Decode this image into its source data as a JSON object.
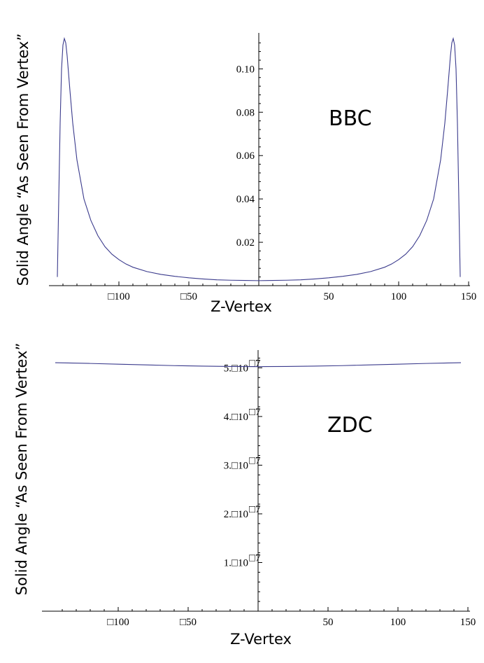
{
  "chart_data": [
    {
      "type": "line",
      "xlabel": "Z-Vertex",
      "ylabel": "Solid Angle “As Seen From Vertex”",
      "annotation": "BBC",
      "xlim": [
        -145,
        145
      ],
      "ylim": [
        0,
        0.114
      ],
      "x_ticks": [
        -100,
        -50,
        50,
        100,
        150
      ],
      "x_tick_labels": [
        "□100",
        "□50",
        "50",
        "100",
        "150"
      ],
      "y_ticks": [
        0.02,
        0.04,
        0.06,
        0.08,
        0.1
      ],
      "y_tick_labels": [
        "0.02",
        "0.04",
        "0.06",
        "0.08",
        "0.10"
      ],
      "color": "#3a3a8c",
      "series": [
        {
          "x": [
            -144,
            -143,
            -142,
            -141,
            -140,
            -139,
            -138,
            -137,
            -136,
            -135,
            -133,
            -130,
            -125,
            -120,
            -115,
            -110,
            -105,
            -100,
            -95,
            -90,
            -80,
            -70,
            -60,
            -50,
            -40,
            -30,
            -20,
            -10,
            0,
            10,
            20,
            30,
            40,
            50,
            60,
            70,
            80,
            90,
            95,
            100,
            105,
            110,
            115,
            120,
            125,
            130,
            133,
            135,
            136,
            137,
            138,
            139,
            140,
            141,
            142,
            143,
            144
          ],
          "y": [
            0.004,
            0.04,
            0.075,
            0.1,
            0.111,
            0.114,
            0.112,
            0.106,
            0.098,
            0.09,
            0.075,
            0.058,
            0.04,
            0.03,
            0.023,
            0.018,
            0.0145,
            0.012,
            0.01,
            0.0085,
            0.0065,
            0.0052,
            0.0043,
            0.0036,
            0.0031,
            0.0027,
            0.0025,
            0.0024,
            0.0023,
            0.0024,
            0.0025,
            0.0027,
            0.0031,
            0.0036,
            0.0043,
            0.0052,
            0.0065,
            0.0085,
            0.01,
            0.012,
            0.0145,
            0.018,
            0.023,
            0.03,
            0.04,
            0.058,
            0.075,
            0.09,
            0.098,
            0.106,
            0.112,
            0.114,
            0.111,
            0.1,
            0.075,
            0.04,
            0.004
          ]
        }
      ]
    },
    {
      "type": "line",
      "xlabel": "Z-Vertex",
      "ylabel": "Solid Angle “As Seen From Vertex”",
      "annotation": "ZDC",
      "xlim": [
        -145,
        145
      ],
      "ylim": [
        0,
        5.25e-07
      ],
      "x_ticks": [
        -100,
        -50,
        50,
        100,
        150
      ],
      "x_tick_labels": [
        "□100",
        "□50",
        "50",
        "100",
        "150"
      ],
      "y_ticks": [
        1e-07,
        2e-07,
        3e-07,
        4e-07,
        5e-07
      ],
      "y_tick_labels": [
        "1.□10",
        "2.□10",
        "3.□10",
        "4.□10",
        "5.□10"
      ],
      "y_tick_exponent": "□7",
      "color": "#3a3a8c",
      "series": [
        {
          "x": [
            -145,
            -120,
            -100,
            -80,
            -60,
            -40,
            -20,
            0,
            20,
            40,
            60,
            80,
            100,
            120,
            145
          ],
          "y": [
            5.105e-07,
            5.09e-07,
            5.075e-07,
            5.06e-07,
            5.045e-07,
            5.035e-07,
            5.028e-07,
            5.025e-07,
            5.028e-07,
            5.035e-07,
            5.045e-07,
            5.06e-07,
            5.075e-07,
            5.09e-07,
            5.105e-07
          ]
        }
      ]
    }
  ]
}
